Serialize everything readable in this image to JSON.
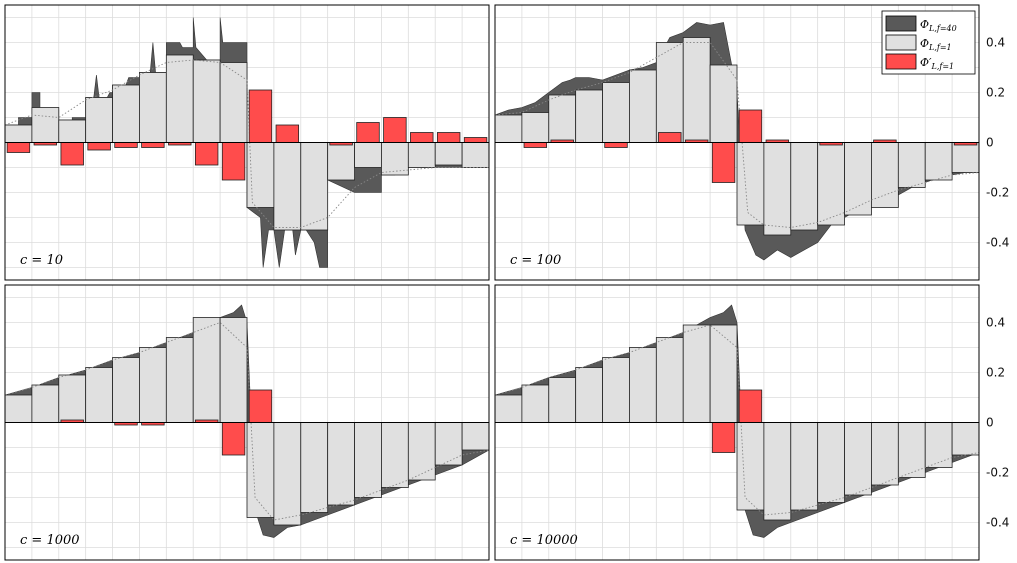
{
  "colors": {
    "f40": "#595959",
    "f1": "#e0e0e0",
    "fprime": "#ff4c4c",
    "grid": "#dcdcdc",
    "dotted": "#888888",
    "edge": "#222222"
  },
  "chart_data": {
    "type": "bar",
    "grid": true,
    "legend_position": "top-right",
    "ylim": [
      -0.55,
      0.55
    ],
    "yticks": [
      -0.4,
      -0.2,
      0,
      0.2,
      0.4
    ],
    "ytick_labels": [
      "-0.4",
      "-0.2",
      "0",
      "0.2",
      "0.4"
    ],
    "legend": [
      {
        "key": "f40",
        "label": "Φ_{L,f=40}",
        "base": "Φ",
        "sub": "L,f=40",
        "prime": ""
      },
      {
        "key": "f1",
        "label": "Φ_{L,f=1}",
        "base": "Φ",
        "sub": "L,f=1",
        "prime": ""
      },
      {
        "key": "fprime",
        "label": "Φ'_{L,f=1}",
        "base": "Φ",
        "sub": "L,f=1",
        "prime": "′"
      }
    ],
    "panels": [
      {
        "label": "c = 10",
        "f1": [
          0.07,
          0.14,
          0.09,
          0.18,
          0.23,
          0.28,
          0.35,
          0.33,
          0.32,
          -0.26,
          -0.35,
          -0.35,
          -0.15,
          -0.1,
          -0.13,
          -0.1,
          -0.09,
          -0.1
        ],
        "fprime": [
          -0.04,
          -0.01,
          -0.09,
          -0.03,
          -0.02,
          -0.02,
          -0.01,
          -0.09,
          -0.15,
          0.21,
          0.07,
          0.0,
          -0.01,
          0.08,
          0.1,
          0.04,
          0.04,
          0.02
        ],
        "f40_line": [
          [
            0,
            0.07
          ],
          [
            0.5,
            0.07
          ],
          [
            0.5,
            0.1
          ],
          [
            1,
            0.1
          ],
          [
            1,
            0.2
          ],
          [
            1.3,
            0.2
          ],
          [
            1.3,
            0.13
          ],
          [
            2,
            0.13
          ],
          [
            2,
            0.09
          ],
          [
            2.5,
            0.09
          ],
          [
            2.5,
            0.1
          ],
          [
            3,
            0.1
          ],
          [
            3,
            0.18
          ],
          [
            3.3,
            0.18
          ],
          [
            3.4,
            0.27
          ],
          [
            3.5,
            0.18
          ],
          [
            3.8,
            0.18
          ],
          [
            3.9,
            0.2
          ],
          [
            4,
            0.2
          ],
          [
            4,
            0.23
          ],
          [
            4.5,
            0.23
          ],
          [
            4.6,
            0.26
          ],
          [
            5,
            0.26
          ],
          [
            5,
            0.28
          ],
          [
            5.4,
            0.28
          ],
          [
            5.5,
            0.4
          ],
          [
            5.6,
            0.28
          ],
          [
            6,
            0.28
          ],
          [
            6,
            0.4
          ],
          [
            6.5,
            0.4
          ],
          [
            6.6,
            0.38
          ],
          [
            7,
            0.38
          ],
          [
            7,
            0.5
          ],
          [
            7.1,
            0.38
          ],
          [
            7.5,
            0.33
          ],
          [
            8,
            0.33
          ],
          [
            8,
            0.5
          ],
          [
            8.1,
            0.4
          ],
          [
            8.5,
            0.4
          ],
          [
            9,
            0.4
          ],
          [
            9,
            -0.26
          ],
          [
            9.5,
            -0.3
          ],
          [
            9.6,
            -0.5
          ],
          [
            9.8,
            -0.35
          ],
          [
            10,
            -0.35
          ],
          [
            10.2,
            -0.5
          ],
          [
            10.4,
            -0.35
          ],
          [
            10.7,
            -0.35
          ],
          [
            10.8,
            -0.45
          ],
          [
            11,
            -0.35
          ],
          [
            11.2,
            -0.35
          ],
          [
            11.5,
            -0.4
          ],
          [
            11.7,
            -0.5
          ],
          [
            12,
            -0.5
          ],
          [
            12,
            -0.15
          ],
          [
            13,
            -0.2
          ],
          [
            14,
            -0.2
          ],
          [
            14,
            -0.13
          ],
          [
            14.5,
            -0.13
          ],
          [
            15,
            -0.1
          ],
          [
            16,
            -0.1
          ],
          [
            17,
            -0.1
          ],
          [
            18,
            -0.1
          ]
        ],
        "dotted": [
          [
            0,
            0.07
          ],
          [
            1,
            0.11
          ],
          [
            2,
            0.1
          ],
          [
            3,
            0.17
          ],
          [
            4,
            0.21
          ],
          [
            5,
            0.27
          ],
          [
            6,
            0.32
          ],
          [
            7,
            0.33
          ],
          [
            8,
            0.32
          ],
          [
            9,
            0.25
          ],
          [
            9.2,
            -0.24
          ],
          [
            10,
            -0.34
          ],
          [
            11,
            -0.34
          ],
          [
            12,
            -0.3
          ],
          [
            13,
            -0.18
          ],
          [
            14,
            -0.12
          ],
          [
            15,
            -0.11
          ],
          [
            16,
            -0.1
          ],
          [
            17,
            -0.1
          ],
          [
            18,
            -0.1
          ]
        ]
      },
      {
        "label": "c = 100",
        "f1": [
          0.11,
          0.12,
          0.19,
          0.21,
          0.24,
          0.29,
          0.4,
          0.42,
          0.31,
          -0.33,
          -0.37,
          -0.35,
          -0.33,
          -0.29,
          -0.26,
          -0.18,
          -0.15,
          -0.12
        ],
        "fprime": [
          0.0,
          -0.02,
          0.01,
          0.0,
          -0.02,
          0.0,
          0.04,
          0.01,
          -0.16,
          0.13,
          0.01,
          0.0,
          -0.01,
          0.0,
          0.01,
          0.0,
          0.0,
          -0.01
        ],
        "f40_line": [
          [
            0,
            0.11
          ],
          [
            0.5,
            0.13
          ],
          [
            1,
            0.14
          ],
          [
            1.5,
            0.16
          ],
          [
            2,
            0.2
          ],
          [
            2.5,
            0.24
          ],
          [
            2.8,
            0.25
          ],
          [
            3,
            0.26
          ],
          [
            3.5,
            0.26
          ],
          [
            4,
            0.25
          ],
          [
            4.5,
            0.27
          ],
          [
            5,
            0.29
          ],
          [
            5.5,
            0.3
          ],
          [
            6,
            0.32
          ],
          [
            6.5,
            0.42
          ],
          [
            7,
            0.44
          ],
          [
            7.5,
            0.48
          ],
          [
            8,
            0.47
          ],
          [
            8.5,
            0.48
          ],
          [
            9,
            0.2
          ],
          [
            9.3,
            -0.35
          ],
          [
            9.7,
            -0.45
          ],
          [
            10,
            -0.47
          ],
          [
            10.5,
            -0.43
          ],
          [
            11,
            -0.46
          ],
          [
            11.5,
            -0.43
          ],
          [
            12,
            -0.4
          ],
          [
            12.5,
            -0.33
          ],
          [
            13,
            -0.3
          ],
          [
            13.5,
            -0.27
          ],
          [
            14,
            -0.24
          ],
          [
            14.5,
            -0.22
          ],
          [
            15,
            -0.21
          ],
          [
            15.5,
            -0.18
          ],
          [
            16,
            -0.16
          ],
          [
            16.5,
            -0.14
          ],
          [
            17,
            -0.13
          ],
          [
            17.5,
            -0.12
          ],
          [
            18,
            -0.12
          ]
        ],
        "dotted": [
          [
            0,
            0.11
          ],
          [
            1,
            0.12
          ],
          [
            2,
            0.17
          ],
          [
            3,
            0.21
          ],
          [
            4,
            0.24
          ],
          [
            5,
            0.28
          ],
          [
            6,
            0.34
          ],
          [
            7,
            0.4
          ],
          [
            8,
            0.4
          ],
          [
            9,
            0.25
          ],
          [
            9.4,
            -0.28
          ],
          [
            10,
            -0.33
          ],
          [
            11,
            -0.34
          ],
          [
            12,
            -0.32
          ],
          [
            13,
            -0.28
          ],
          [
            14,
            -0.23
          ],
          [
            15,
            -0.19
          ],
          [
            16,
            -0.16
          ],
          [
            17,
            -0.13
          ],
          [
            18,
            -0.12
          ]
        ]
      },
      {
        "label": "c = 1000",
        "f1": [
          0.11,
          0.15,
          0.19,
          0.22,
          0.26,
          0.3,
          0.34,
          0.42,
          0.42,
          -0.38,
          -0.41,
          -0.36,
          -0.33,
          -0.3,
          -0.26,
          -0.23,
          -0.17,
          -0.11
        ],
        "fprime": [
          0.0,
          0.0,
          0.01,
          0.0,
          -0.01,
          -0.01,
          0.0,
          0.01,
          -0.13,
          0.13,
          0.0,
          0.0,
          0.0,
          0.0,
          0.0,
          0.0,
          0.0,
          0.0
        ],
        "f40_line": [
          [
            0,
            0.11
          ],
          [
            1,
            0.14
          ],
          [
            2,
            0.18
          ],
          [
            3,
            0.21
          ],
          [
            4,
            0.25
          ],
          [
            5,
            0.28
          ],
          [
            6,
            0.32
          ],
          [
            7,
            0.36
          ],
          [
            7.5,
            0.39
          ],
          [
            8,
            0.42
          ],
          [
            8.5,
            0.44
          ],
          [
            8.8,
            0.47
          ],
          [
            9,
            0.4
          ],
          [
            9.3,
            -0.35
          ],
          [
            9.6,
            -0.45
          ],
          [
            10,
            -0.46
          ],
          [
            10.5,
            -0.42
          ],
          [
            11,
            -0.41
          ],
          [
            12,
            -0.37
          ],
          [
            13,
            -0.33
          ],
          [
            14,
            -0.29
          ],
          [
            15,
            -0.25
          ],
          [
            16,
            -0.21
          ],
          [
            17,
            -0.17
          ],
          [
            18,
            -0.11
          ]
        ],
        "dotted": [
          [
            0,
            0.11
          ],
          [
            1,
            0.14
          ],
          [
            2,
            0.18
          ],
          [
            3,
            0.21
          ],
          [
            4,
            0.25
          ],
          [
            5,
            0.28
          ],
          [
            6,
            0.32
          ],
          [
            7,
            0.36
          ],
          [
            8,
            0.4
          ],
          [
            9,
            0.3
          ],
          [
            9.3,
            -0.3
          ],
          [
            10,
            -0.39
          ],
          [
            11,
            -0.37
          ],
          [
            12,
            -0.34
          ],
          [
            13,
            -0.31
          ],
          [
            14,
            -0.27
          ],
          [
            15,
            -0.23
          ],
          [
            16,
            -0.18
          ],
          [
            17,
            -0.13
          ],
          [
            18,
            -0.11
          ]
        ]
      },
      {
        "label": "c = 10000",
        "f1": [
          0.11,
          0.15,
          0.18,
          0.22,
          0.26,
          0.3,
          0.34,
          0.39,
          0.39,
          -0.35,
          -0.39,
          -0.35,
          -0.32,
          -0.29,
          -0.25,
          -0.22,
          -0.18,
          -0.13
        ],
        "fprime": [
          0.0,
          0.0,
          0.0,
          0.0,
          0.0,
          0.0,
          0.0,
          0.0,
          -0.12,
          0.13,
          0.0,
          0.0,
          0.0,
          0.0,
          0.0,
          0.0,
          0.0,
          0.0
        ],
        "f40_line": [
          [
            0,
            0.11
          ],
          [
            1,
            0.14
          ],
          [
            2,
            0.18
          ],
          [
            3,
            0.21
          ],
          [
            4,
            0.25
          ],
          [
            5,
            0.28
          ],
          [
            6,
            0.32
          ],
          [
            7,
            0.36
          ],
          [
            7.5,
            0.39
          ],
          [
            8,
            0.42
          ],
          [
            8.5,
            0.44
          ],
          [
            8.8,
            0.47
          ],
          [
            9,
            0.4
          ],
          [
            9.3,
            -0.35
          ],
          [
            9.6,
            -0.45
          ],
          [
            10,
            -0.46
          ],
          [
            10.5,
            -0.42
          ],
          [
            11,
            -0.4
          ],
          [
            12,
            -0.36
          ],
          [
            13,
            -0.32
          ],
          [
            14,
            -0.28
          ],
          [
            15,
            -0.24
          ],
          [
            16,
            -0.2
          ],
          [
            17,
            -0.16
          ],
          [
            18,
            -0.12
          ]
        ],
        "dotted": [
          [
            0,
            0.11
          ],
          [
            1,
            0.14
          ],
          [
            2,
            0.18
          ],
          [
            3,
            0.21
          ],
          [
            4,
            0.25
          ],
          [
            5,
            0.28
          ],
          [
            6,
            0.32
          ],
          [
            7,
            0.36
          ],
          [
            8,
            0.39
          ],
          [
            9,
            0.3
          ],
          [
            9.3,
            -0.3
          ],
          [
            10,
            -0.37
          ],
          [
            11,
            -0.36
          ],
          [
            12,
            -0.33
          ],
          [
            13,
            -0.3
          ],
          [
            14,
            -0.26
          ],
          [
            15,
            -0.22
          ],
          [
            16,
            -0.18
          ],
          [
            17,
            -0.14
          ],
          [
            18,
            -0.12
          ]
        ]
      }
    ]
  }
}
